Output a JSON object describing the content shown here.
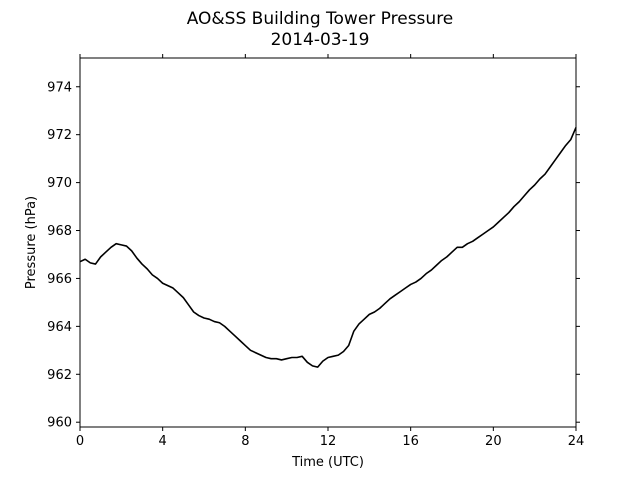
{
  "chart_data": {
    "type": "line",
    "title": "AO&SS Building Tower Pressure",
    "subtitle": "2014-03-19",
    "xlabel": "Time (UTC)",
    "ylabel": "Pressure (hPa)",
    "xlim": [
      0,
      24
    ],
    "ylim": [
      959.8,
      975.2
    ],
    "xticks": [
      0,
      4,
      8,
      12,
      16,
      20,
      24
    ],
    "yticks": [
      960,
      962,
      964,
      966,
      968,
      970,
      972,
      974
    ],
    "grid": false,
    "legend": "none",
    "line_color": "#000000",
    "series": [
      {
        "x": [
          0,
          0.25,
          0.5,
          0.75,
          1.0,
          1.25,
          1.5,
          1.75,
          2.0,
          2.25,
          2.5,
          2.75,
          3.0,
          3.25,
          3.5,
          3.75,
          4.0,
          4.25,
          4.5,
          4.75,
          5.0,
          5.25,
          5.5,
          5.75,
          6.0,
          6.25,
          6.5,
          6.75,
          7.0,
          7.25,
          7.5,
          7.75,
          8.0,
          8.25,
          8.5,
          8.75,
          9.0,
          9.25,
          9.5,
          9.75,
          10.0,
          10.25,
          10.5,
          10.75,
          11.0,
          11.25,
          11.5,
          11.75,
          12.0,
          12.25,
          12.5,
          12.75,
          13.0,
          13.25,
          13.5,
          13.75,
          14.0,
          14.25,
          14.5,
          14.75,
          15.0,
          15.25,
          15.5,
          15.75,
          16.0,
          16.25,
          16.5,
          16.75,
          17.0,
          17.25,
          17.5,
          17.75,
          18.0,
          18.25,
          18.5,
          18.75,
          19.0,
          19.25,
          19.5,
          19.75,
          20.0,
          20.25,
          20.5,
          20.75,
          21.0,
          21.25,
          21.5,
          21.75,
          22.0,
          22.25,
          22.5,
          22.75,
          23.0,
          23.25,
          23.5,
          23.75,
          24.0
        ],
        "values": [
          966.7,
          966.8,
          966.65,
          966.6,
          966.9,
          967.1,
          967.3,
          967.45,
          967.4,
          967.35,
          967.15,
          966.85,
          966.6,
          966.4,
          966.15,
          966.0,
          965.8,
          965.7,
          965.6,
          965.4,
          965.2,
          964.9,
          964.6,
          964.45,
          964.35,
          964.3,
          964.2,
          964.15,
          964.0,
          963.8,
          963.6,
          963.4,
          963.2,
          963.0,
          962.9,
          962.8,
          962.7,
          962.65,
          962.65,
          962.6,
          962.65,
          962.7,
          962.7,
          962.75,
          962.5,
          962.35,
          962.3,
          962.55,
          962.7,
          962.75,
          962.8,
          962.95,
          963.2,
          963.8,
          964.1,
          964.3,
          964.5,
          964.6,
          964.75,
          964.95,
          965.15,
          965.3,
          965.45,
          965.6,
          965.75,
          965.85,
          966.0,
          966.2,
          966.35,
          966.55,
          966.75,
          966.9,
          967.1,
          967.3,
          967.3,
          967.45,
          967.55,
          967.7,
          967.85,
          968.0,
          968.15,
          968.35,
          968.55,
          968.75,
          969.0,
          969.2,
          969.45,
          969.7,
          969.9,
          970.15,
          970.35,
          970.65,
          970.95,
          971.25,
          971.55,
          971.8,
          972.3
        ]
      }
    ]
  }
}
